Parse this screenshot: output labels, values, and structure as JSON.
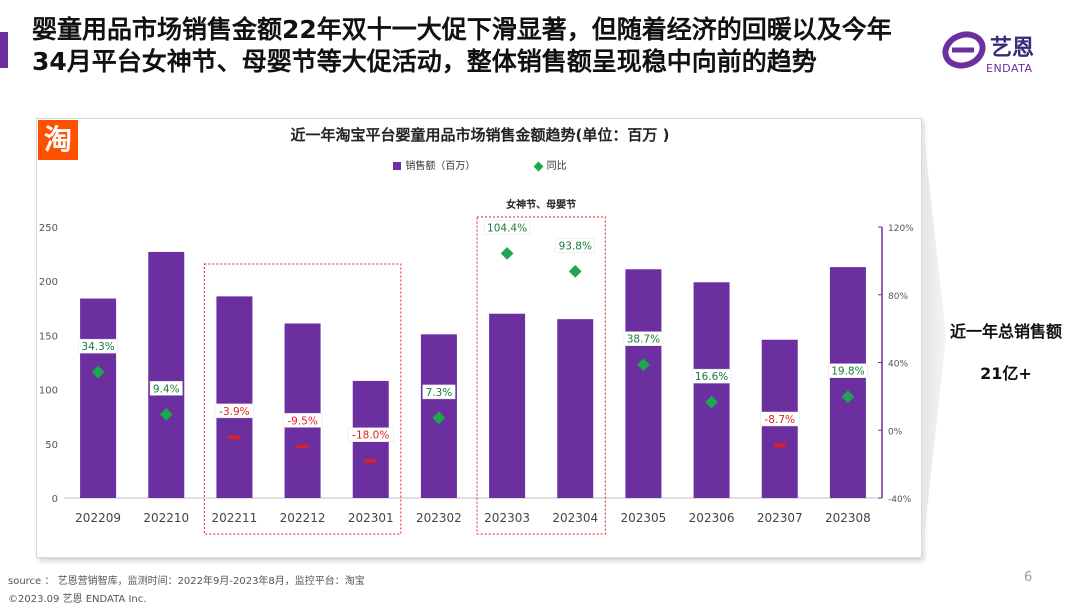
{
  "page": {
    "headline_line1": "婴童用品市场销售金额22年双十一大促下滑显著，但随着经济的回暖以及今年",
    "headline_line2": "34月平台女神节、母婴节等大促活动，整体销售额呈现稳中向前的趋势",
    "accent_color": "#6b2fa0",
    "page_number": "6"
  },
  "logo": {
    "cn": "艺恩",
    "en": "ENDATA",
    "color": "#6b2fa0"
  },
  "badge": {
    "text": "淘",
    "color": "#ff5000"
  },
  "summary": {
    "title": "近一年总销售额",
    "value": "21亿+"
  },
  "footer": {
    "source": "source ： 艺恩营销智库，监测时间：2022年9月-2023年8月，监控平台：淘宝",
    "copyright": "©2023.09  艺恩 ENDATA Inc."
  },
  "chart_data": {
    "type": "bar",
    "title": "近一年淘宝平台婴童用品市场销售金额趋势(单位：百万 )",
    "legend": {
      "bar_label": "销售额（百万）",
      "dot_label": "同比",
      "placement": "top-center"
    },
    "categories": [
      "202209",
      "202210",
      "202211",
      "202212",
      "202301",
      "202302",
      "202303",
      "202304",
      "202305",
      "202306",
      "202307",
      "202308"
    ],
    "series": [
      {
        "name": "销售额（百万）",
        "type": "bar",
        "axis": "left",
        "color": "#6b2fa0",
        "values": [
          184,
          227,
          186,
          161,
          108,
          151,
          170,
          165,
          211,
          199,
          146,
          213
        ]
      },
      {
        "name": "同比",
        "type": "scatter",
        "axis": "right",
        "values": [
          34.3,
          9.4,
          -3.9,
          -9.5,
          -18.0,
          7.3,
          104.4,
          93.8,
          38.7,
          16.6,
          -8.7,
          19.8
        ],
        "labels": [
          "34.3%",
          "9.4%",
          "-3.9%",
          "-9.5%",
          "-18.0%",
          "7.3%",
          "104.4%",
          "93.8%",
          "38.7%",
          "16.6%",
          "-8.7%",
          "19.8%"
        ],
        "positive_color": "#1da850",
        "negative_color": "#e02020"
      }
    ],
    "y_left": {
      "min": 0,
      "max": 250,
      "ticks": [
        0,
        50,
        100,
        150,
        200,
        250
      ]
    },
    "y_right": {
      "min": -40,
      "max": 120,
      "ticks": [
        -40,
        0,
        40,
        80,
        120
      ],
      "tick_labels": [
        "-40%",
        "0%",
        "40%",
        "80%",
        "120%"
      ]
    },
    "grid": false,
    "highlight_groups": [
      {
        "start": 2,
        "end": 4,
        "label": "",
        "border_color": "#e02020"
      },
      {
        "start": 6,
        "end": 7,
        "label": "女神节、母婴节",
        "border_color": "#e02020"
      }
    ]
  }
}
